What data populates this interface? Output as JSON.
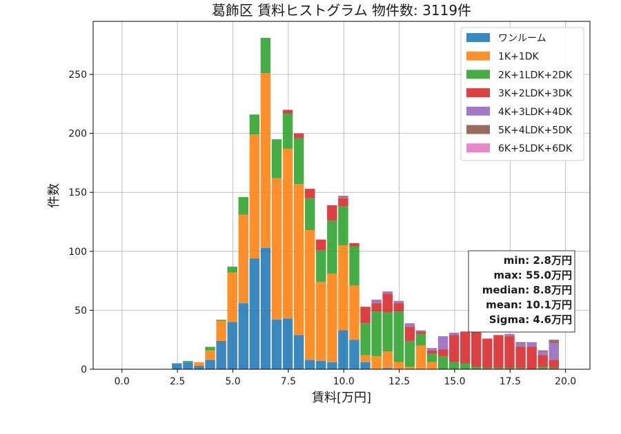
{
  "chart_data": {
    "type": "bar",
    "title": "葛飾区 賃料ヒストグラム 物件数: 3119件",
    "xlabel": "賃料[万円]",
    "ylabel": "件数",
    "xlim": [
      -1.3,
      21.1
    ],
    "ylim": [
      0,
      295
    ],
    "xticks": [
      0.0,
      2.5,
      5.0,
      7.5,
      10.0,
      12.5,
      15.0,
      17.5,
      20.0
    ],
    "xtick_labels": [
      "0.0",
      "2.5",
      "5.0",
      "7.5",
      "10.0",
      "12.5",
      "15.0",
      "17.5",
      "20.0"
    ],
    "yticks": [
      0,
      50,
      100,
      150,
      200,
      250
    ],
    "ytick_labels": [
      "0",
      "50",
      "100",
      "150",
      "200",
      "250"
    ],
    "grid": true,
    "legend_position": "top-right",
    "bin_width": 0.5,
    "bin_start": [
      2.25,
      2.75,
      3.25,
      3.75,
      4.25,
      4.75,
      5.25,
      5.75,
      6.25,
      6.75,
      7.25,
      7.75,
      8.25,
      8.75,
      9.25,
      9.75,
      10.25,
      10.75,
      11.25,
      11.75,
      12.25,
      12.75,
      13.25,
      13.75,
      14.25,
      14.75,
      15.25,
      15.75,
      16.25,
      16.75,
      17.25,
      17.75,
      18.25,
      18.75,
      19.25
    ],
    "series": [
      {
        "name": "ワンルーム",
        "color": "#1f77b4",
        "values": [
          5,
          6,
          3,
          8,
          24,
          40,
          56,
          94,
          103,
          42,
          43,
          29,
          8,
          7,
          6,
          33,
          25,
          6,
          0,
          1,
          0,
          0,
          0,
          0,
          0,
          0,
          0,
          0,
          0,
          0,
          0,
          0,
          0,
          0,
          0
        ]
      },
      {
        "name": "1K+1DK",
        "color": "#ff7f0e",
        "values": [
          0,
          0,
          3,
          8,
          17,
          42,
          75,
          105,
          148,
          120,
          144,
          128,
          110,
          67,
          75,
          72,
          46,
          6,
          11,
          14,
          6,
          2,
          20,
          6,
          0,
          0,
          0,
          0,
          0,
          0,
          0,
          0,
          0,
          0,
          0
        ]
      },
      {
        "name": "2K+1LDK+2DK",
        "color": "#2ca02c",
        "values": [
          0,
          1,
          0,
          3,
          1,
          5,
          15,
          17,
          30,
          33,
          30,
          39,
          27,
          27,
          45,
          33,
          33,
          27,
          38,
          33,
          43,
          22,
          10,
          7,
          11,
          6,
          5,
          2,
          1,
          1,
          1,
          1,
          0,
          2,
          1
        ]
      },
      {
        "name": "3K+2LDK+3DK",
        "color": "#d62728",
        "values": [
          0,
          0,
          0,
          0,
          0,
          0,
          0,
          0,
          0,
          0,
          3,
          4,
          8,
          9,
          13,
          7,
          3,
          14,
          7,
          16,
          7,
          12,
          2,
          3,
          6,
          23,
          27,
          30,
          25,
          28,
          27,
          18,
          19,
          10,
          7
        ]
      },
      {
        "name": "4K+3LDK+4DK",
        "color": "#9467bd",
        "values": [
          0,
          0,
          0,
          0,
          0,
          0,
          0,
          0,
          0,
          0,
          0,
          0,
          0,
          0,
          0,
          1,
          0,
          0,
          3,
          2,
          2,
          3,
          1,
          2,
          11,
          2,
          0,
          0,
          0,
          0,
          2,
          3,
          4,
          3,
          14
        ]
      },
      {
        "name": "5K+4LDK+5DK",
        "color": "#8c564b",
        "values": [
          0,
          0,
          0,
          0,
          0,
          0,
          0,
          0,
          0,
          0,
          0,
          0,
          0,
          0,
          0,
          1,
          0,
          0,
          0,
          0,
          0,
          0,
          0,
          0,
          0,
          0,
          0,
          0,
          0,
          0,
          0,
          1,
          0,
          1,
          3
        ]
      },
      {
        "name": "6K+5LDK+6DK",
        "color": "#e377c2",
        "values": [
          0,
          0,
          0,
          0,
          0,
          0,
          0,
          0,
          0,
          0,
          0,
          0,
          0,
          0,
          0,
          0,
          0,
          0,
          0,
          0,
          0,
          0,
          0,
          0,
          0,
          0,
          0,
          0,
          0,
          0,
          0,
          0,
          0,
          0,
          0
        ]
      }
    ],
    "stats": [
      "min: 2.8万円",
      "max: 55.0万円",
      "median: 8.8万円",
      "mean: 10.1万円",
      "Sigma: 4.6万円"
    ]
  }
}
